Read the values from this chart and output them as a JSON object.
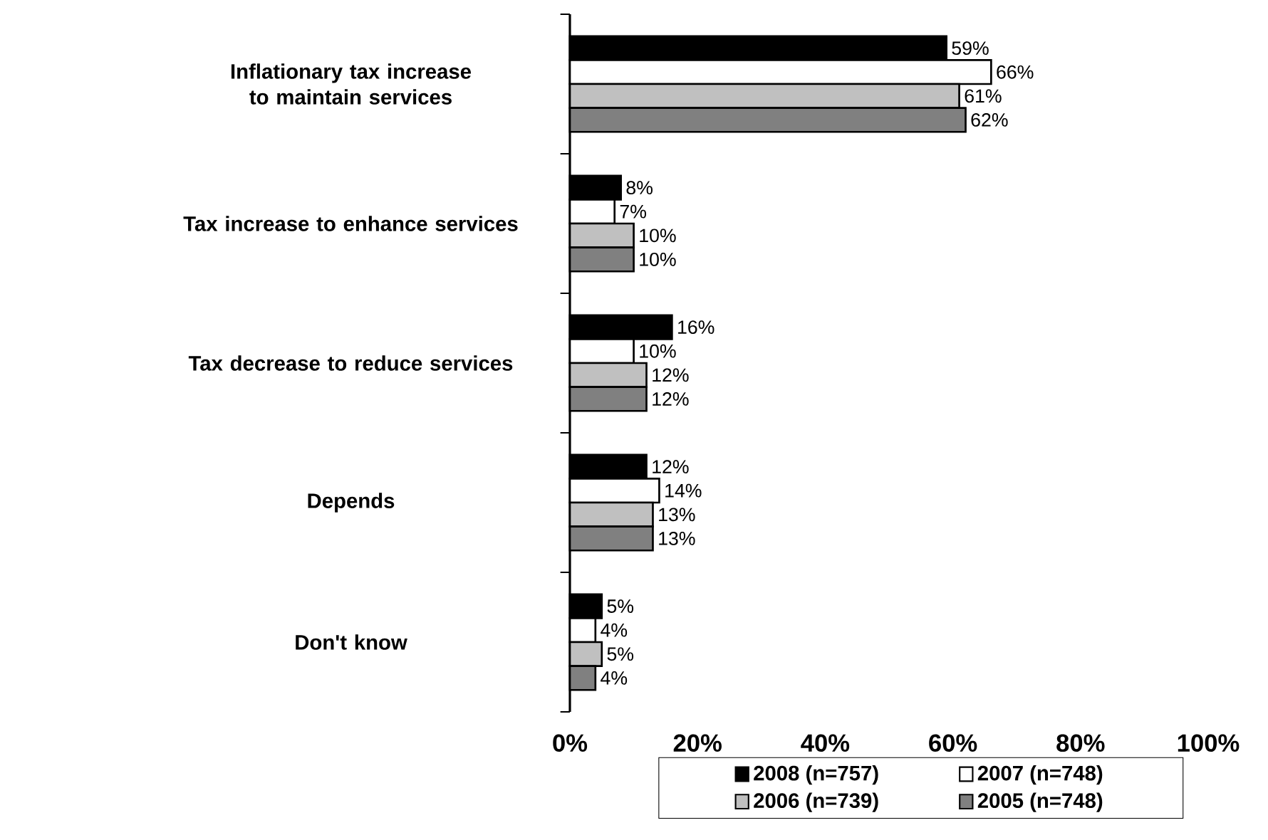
{
  "chart_data": {
    "type": "bar",
    "orientation": "horizontal",
    "categories": [
      "Inflationary tax increase to maintain services",
      "Tax increase to enhance services",
      "Tax decrease to reduce services",
      "Depends",
      "Don't know"
    ],
    "series": [
      {
        "name": "2008 (n=757)",
        "color": "#000000",
        "values": [
          59,
          8,
          16,
          12,
          5
        ],
        "value_labels": [
          "59%",
          "8%",
          "16%",
          "12%",
          "5%"
        ]
      },
      {
        "name": "2007 (n=748)",
        "color": "#ffffff",
        "values": [
          66,
          7,
          10,
          14,
          4
        ],
        "value_labels": [
          "66%",
          "7%",
          "10%",
          "14%",
          "4%"
        ]
      },
      {
        "name": "2006 (n=739)",
        "color": "#c0c0c0",
        "values": [
          61,
          10,
          12,
          13,
          5
        ],
        "value_labels": [
          "61%",
          "10%",
          "12%",
          "13%",
          "5%"
        ]
      },
      {
        "name": "2005 (n=748)",
        "color": "#808080",
        "values": [
          62,
          10,
          12,
          13,
          4
        ],
        "value_labels": [
          "62%",
          "10%",
          "12%",
          "13%",
          "4%"
        ]
      }
    ],
    "xlim": [
      0,
      100
    ],
    "xticks": [
      {
        "value": 0,
        "label": "0%"
      },
      {
        "value": 20,
        "label": "20%"
      },
      {
        "value": 40,
        "label": "40%"
      },
      {
        "value": 60,
        "label": "60%"
      },
      {
        "value": 80,
        "label": "80%"
      },
      {
        "value": 100,
        "label": "100%"
      }
    ],
    "grid": false,
    "legend": "bottom"
  }
}
